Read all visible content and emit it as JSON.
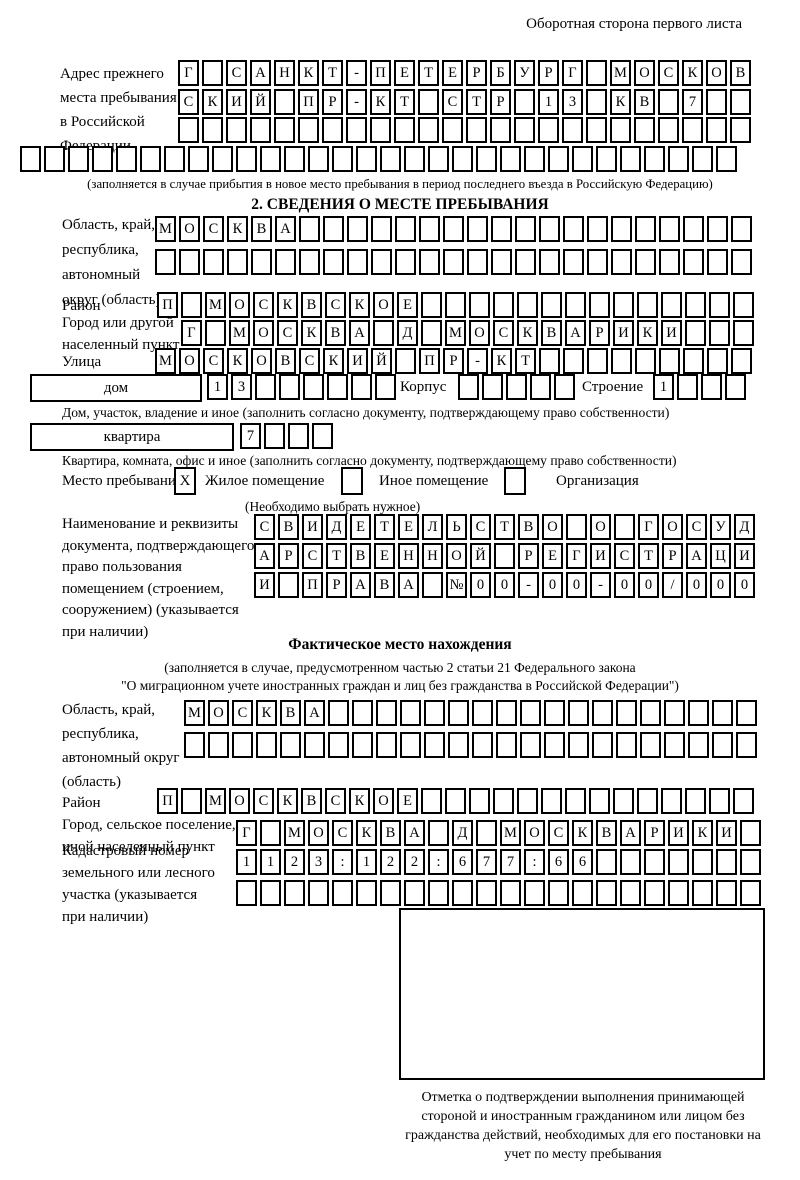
{
  "header": {
    "back_note": "Оборотная сторона первого листа"
  },
  "prev_address": {
    "label": "Адрес прежнего\nместа пребывания\nв Российской\nФедерации",
    "rows": [
      "Г САНКТ-ПЕТЕРБУРГ МОСКОВ",
      "СКИЙ ПР-КТ СТР 13 КВ 7",
      "",
      ""
    ],
    "note": "(заполняется в случае прибытия в новое место пребывания в период последнего въезда в Российскую Федерацию)"
  },
  "section2": {
    "title": "2. СВЕДЕНИЯ О МЕСТЕ ПРЕБЫВАНИЯ",
    "region": {
      "label": "Область, край,\nреспублика,\nавтономный\nокруг (область)",
      "rows": [
        "МОСКВА",
        ""
      ]
    },
    "district": {
      "label": "Район",
      "row": "П МОСКВСКОЕ"
    },
    "city": {
      "label": "Город или другой\nнаселенный пункт",
      "row": "Г МОСКВА Д МОСКВАРИКИ"
    },
    "street": {
      "label": "Улица",
      "row": "МОСКОВСКИЙ ПР-КТ"
    },
    "house": {
      "box_label": "дом",
      "cells": "13",
      "korpus_label": "Корпус",
      "korpus_cells": "",
      "stroenie_label": "Строение",
      "stroenie_cells": "1",
      "note": "Дом, участок, владение и иное (заполнить согласно документу, подтверждающему право собственности)"
    },
    "apartment": {
      "box_label": "квартира",
      "cells": "7",
      "note": "Квартира, комната, офис и иное (заполнить согласно документу, подтверждающему право собственности)"
    },
    "stay_type": {
      "label": "Место пребывания:",
      "options": [
        {
          "mark": "X",
          "label": "Жилое помещение"
        },
        {
          "mark": "",
          "label": "Иное помещение"
        },
        {
          "mark": "",
          "label": "Организация"
        }
      ],
      "note": "(Необходимо выбрать нужное)"
    },
    "document": {
      "label": "Наименование и реквизиты\nдокумента, подтверждающего\nправо пользования\nпомещением (строением,\nсооружением) (указывается\nпри наличии)",
      "rows": [
        "СВИДЕТЕЛЬСТВО О ГОСУД",
        "АРСТВЕННОЙ РЕГИСТРАЦИ",
        "И ПРАВА №00-00-00/000"
      ]
    }
  },
  "actual_location": {
    "title": "Фактическое место нахождения",
    "note_line1": "(заполняется в случае, предусмотренном частью 2 статьи 21 Федерального закона",
    "note_line2": "\"О миграционном учете иностранных граждан и лиц без гражданства в Российской Федерации\")",
    "region": {
      "label": "Область, край,\nреспублика,\nавтономный округ\n(область)",
      "rows": [
        "МОСКВА",
        ""
      ]
    },
    "district": {
      "label": "Район",
      "row": "П МОСКВСКОЕ"
    },
    "city": {
      "label": "Город, сельское поселение,\nиной населенный пункт",
      "row": "Г МОСКВА Д МОСКВАРИКИ"
    },
    "cadastre": {
      "label": "Кадастровый номер\nземельного или лесного\nучастка (указывается\nпри наличии)",
      "rows": [
        "1123:122:677:66",
        ""
      ]
    }
  },
  "stamp": {
    "caption": "Отметка о подтверждении выполнения принимающей стороной и иностранным гражданином или лицом без гражданства действий, необходимых для его постановки на учет по месту пребывания"
  }
}
